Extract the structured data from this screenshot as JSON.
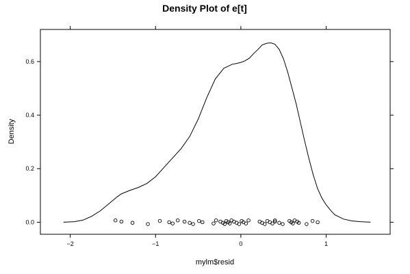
{
  "chart_data": {
    "type": "density",
    "title": "Density Plot of e[t]",
    "xlabel": "mylm$resid",
    "ylabel": "Density",
    "xlim": [
      -2.35,
      1.75
    ],
    "ylim": [
      -0.045,
      0.72
    ],
    "x_ticks": [
      -2,
      -1,
      0,
      1
    ],
    "x_tick_labels": [
      "−2",
      "−1",
      "0",
      "1"
    ],
    "y_ticks": [
      0.0,
      0.2,
      0.4,
      0.6
    ],
    "y_tick_labels": [
      "0.0",
      "0.2",
      "0.4",
      "0.6"
    ],
    "grid": false,
    "line_color": "#000000",
    "density_curve": {
      "x": [
        -2.08,
        -1.95,
        -1.85,
        -1.75,
        -1.65,
        -1.55,
        -1.45,
        -1.4,
        -1.3,
        -1.2,
        -1.1,
        -1.0,
        -0.9,
        -0.8,
        -0.7,
        -0.6,
        -0.5,
        -0.4,
        -0.3,
        -0.2,
        -0.1,
        -0.05,
        0.0,
        0.05,
        0.1,
        0.15,
        0.2,
        0.25,
        0.3,
        0.35,
        0.4,
        0.45,
        0.5,
        0.55,
        0.6,
        0.65,
        0.7,
        0.75,
        0.8,
        0.85,
        0.9,
        0.95,
        1.0,
        1.05,
        1.1,
        1.2,
        1.3,
        1.4,
        1.52
      ],
      "y": [
        0.0,
        0.002,
        0.008,
        0.022,
        0.042,
        0.068,
        0.095,
        0.106,
        0.119,
        0.13,
        0.145,
        0.17,
        0.205,
        0.24,
        0.275,
        0.32,
        0.385,
        0.465,
        0.535,
        0.575,
        0.59,
        0.593,
        0.597,
        0.603,
        0.613,
        0.63,
        0.645,
        0.662,
        0.668,
        0.67,
        0.665,
        0.645,
        0.61,
        0.56,
        0.5,
        0.44,
        0.37,
        0.3,
        0.235,
        0.175,
        0.125,
        0.09,
        0.065,
        0.045,
        0.028,
        0.012,
        0.005,
        0.002,
        0.0
      ]
    },
    "rug_points": [
      -1.47,
      -1.4,
      -1.27,
      -1.09,
      -0.95,
      -0.84,
      -0.8,
      -0.74,
      -0.66,
      -0.6,
      -0.56,
      -0.49,
      -0.45,
      -0.32,
      -0.29,
      -0.24,
      -0.21,
      -0.19,
      -0.17,
      -0.15,
      -0.13,
      -0.11,
      -0.08,
      -0.05,
      -0.02,
      0.01,
      0.03,
      0.06,
      0.09,
      0.22,
      0.25,
      0.28,
      0.31,
      0.34,
      0.37,
      0.4,
      0.4,
      0.45,
      0.49,
      0.57,
      0.59,
      0.61,
      0.63,
      0.66,
      0.68,
      0.77,
      0.84,
      0.9
    ],
    "rug_y": 0.0
  }
}
